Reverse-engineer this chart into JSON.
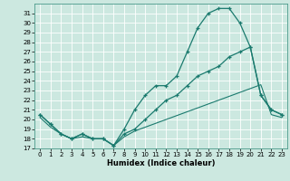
{
  "xlabel": "Humidex (Indice chaleur)",
  "background_color": "#cce8e0",
  "grid_color": "#ffffff",
  "line_color": "#1a7a6e",
  "xlim": [
    -0.5,
    23.5
  ],
  "ylim": [
    17,
    32
  ],
  "xticks": [
    0,
    1,
    2,
    3,
    4,
    5,
    6,
    7,
    8,
    9,
    10,
    11,
    12,
    13,
    14,
    15,
    16,
    17,
    18,
    19,
    20,
    21,
    22,
    23
  ],
  "yticks": [
    17,
    18,
    19,
    20,
    21,
    22,
    23,
    24,
    25,
    26,
    27,
    28,
    29,
    30,
    31
  ],
  "line_top_x": [
    0,
    1,
    2,
    3,
    4,
    5,
    6,
    7,
    8,
    9,
    10,
    11,
    12,
    13,
    14,
    15,
    16,
    17,
    18,
    19,
    20,
    21,
    22,
    23
  ],
  "line_top_y": [
    20.5,
    19.5,
    18.5,
    18.0,
    18.5,
    18.0,
    18.0,
    17.3,
    19.0,
    21.0,
    22.5,
    23.5,
    23.5,
    24.5,
    27.0,
    29.5,
    31.0,
    31.5,
    31.5,
    30.0,
    27.5,
    22.5,
    21.0,
    20.5
  ],
  "line_mid_x": [
    0,
    1,
    2,
    3,
    4,
    5,
    6,
    7,
    8,
    9,
    10,
    11,
    12,
    13,
    14,
    15,
    16,
    17,
    18,
    19,
    20,
    21,
    22,
    23
  ],
  "line_mid_y": [
    20.5,
    19.5,
    18.5,
    18.0,
    18.5,
    18.0,
    18.0,
    17.3,
    18.5,
    19.0,
    20.0,
    21.0,
    22.0,
    22.5,
    23.5,
    24.5,
    25.0,
    25.5,
    26.5,
    27.0,
    27.5,
    22.5,
    21.0,
    20.5
  ],
  "line_bot_x": [
    0,
    1,
    2,
    3,
    4,
    5,
    6,
    7,
    8,
    9,
    10,
    11,
    12,
    13,
    14,
    15,
    16,
    17,
    18,
    19,
    20,
    21,
    22,
    23
  ],
  "line_bot_y": [
    20.2,
    19.2,
    18.5,
    18.0,
    18.2,
    18.0,
    18.0,
    17.3,
    18.2,
    18.8,
    19.2,
    19.6,
    20.0,
    20.4,
    20.8,
    21.2,
    21.6,
    22.0,
    22.4,
    22.8,
    23.2,
    23.6,
    20.5,
    20.2
  ]
}
